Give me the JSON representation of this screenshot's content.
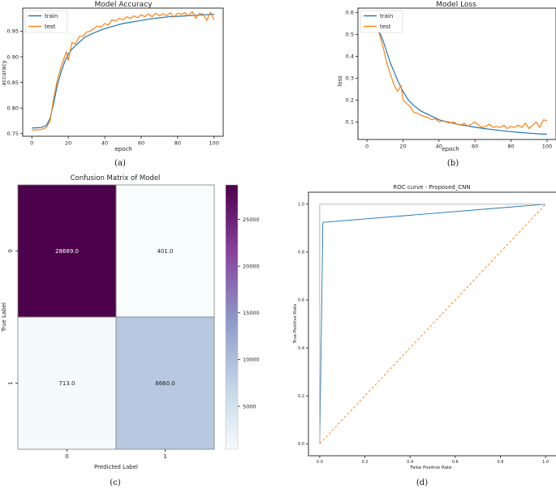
{
  "chart_data": [
    {
      "type": "line",
      "title": "Model Accuracy",
      "xlabel": "epoch",
      "ylabel": "accuracy",
      "caption": "(a)",
      "xlim": [
        -5,
        105
      ],
      "ylim": [
        0.745,
        0.995
      ],
      "xticks": [
        0,
        20,
        40,
        60,
        80,
        100
      ],
      "yticks": [
        0.75,
        0.8,
        0.85,
        0.9,
        0.95
      ],
      "ytick_labels": [
        "0.75",
        "0.80",
        "0.85",
        "0.90",
        "0.95"
      ],
      "legend": "top-left",
      "series": [
        {
          "name": "train",
          "color": "#1f77b4",
          "x": [
            0,
            5,
            8,
            10,
            12,
            14,
            16,
            18,
            20,
            22,
            25,
            28,
            30,
            35,
            40,
            45,
            50,
            55,
            60,
            65,
            70,
            75,
            80,
            85,
            90,
            95,
            100
          ],
          "y": [
            0.761,
            0.762,
            0.766,
            0.78,
            0.81,
            0.845,
            0.87,
            0.89,
            0.905,
            0.915,
            0.925,
            0.935,
            0.94,
            0.948,
            0.955,
            0.96,
            0.965,
            0.968,
            0.971,
            0.974,
            0.976,
            0.978,
            0.979,
            0.98,
            0.981,
            0.982,
            0.983
          ]
        },
        {
          "name": "test",
          "color": "#ff7f0e",
          "x": [
            0,
            5,
            8,
            10,
            12,
            14,
            16,
            18,
            19,
            20,
            22,
            24,
            26,
            28,
            30,
            32,
            34,
            36,
            38,
            40,
            42,
            44,
            46,
            48,
            50,
            52,
            54,
            56,
            58,
            60,
            62,
            64,
            66,
            68,
            70,
            72,
            74,
            76,
            78,
            80,
            82,
            84,
            86,
            88,
            90,
            92,
            94,
            96,
            98,
            100
          ],
          "y": [
            0.757,
            0.758,
            0.762,
            0.775,
            0.82,
            0.855,
            0.88,
            0.9,
            0.91,
            0.893,
            0.928,
            0.925,
            0.94,
            0.94,
            0.948,
            0.95,
            0.955,
            0.96,
            0.958,
            0.965,
            0.962,
            0.972,
            0.97,
            0.975,
            0.972,
            0.978,
            0.975,
            0.98,
            0.976,
            0.982,
            0.978,
            0.984,
            0.978,
            0.985,
            0.98,
            0.984,
            0.98,
            0.986,
            0.977,
            0.985,
            0.983,
            0.986,
            0.98,
            0.988,
            0.975,
            0.985,
            0.983,
            0.971,
            0.987,
            0.972
          ]
        }
      ]
    },
    {
      "type": "line",
      "title": "Model Loss",
      "xlabel": "epoch",
      "ylabel": "loss",
      "caption": "(b)",
      "xlim": [
        -5,
        105
      ],
      "ylim": [
        0.02,
        0.62
      ],
      "xticks": [
        0,
        20,
        40,
        60,
        80,
        100
      ],
      "yticks": [
        0.1,
        0.2,
        0.3,
        0.4,
        0.5,
        0.6
      ],
      "ytick_labels": [
        "0.1",
        "0.2",
        "0.3",
        "0.4",
        "0.5",
        "0.6"
      ],
      "legend": "top-left",
      "series": [
        {
          "name": "train",
          "color": "#1f77b4",
          "x": [
            0,
            3,
            5,
            7,
            9,
            11,
            13,
            15,
            17,
            20,
            23,
            26,
            30,
            35,
            40,
            45,
            50,
            55,
            60,
            65,
            70,
            75,
            80,
            85,
            90,
            95,
            100
          ],
          "y": [
            0.57,
            0.56,
            0.54,
            0.51,
            0.47,
            0.42,
            0.37,
            0.33,
            0.29,
            0.24,
            0.2,
            0.175,
            0.15,
            0.13,
            0.11,
            0.1,
            0.09,
            0.083,
            0.076,
            0.07,
            0.065,
            0.06,
            0.056,
            0.052,
            0.049,
            0.046,
            0.044
          ]
        },
        {
          "name": "test",
          "color": "#ff7f0e",
          "x": [
            0,
            3,
            5,
            7,
            9,
            11,
            13,
            15,
            17,
            19,
            20,
            22,
            24,
            26,
            28,
            30,
            32,
            34,
            36,
            38,
            40,
            42,
            44,
            46,
            48,
            50,
            52,
            54,
            56,
            58,
            60,
            62,
            64,
            66,
            68,
            70,
            72,
            74,
            76,
            78,
            80,
            82,
            84,
            86,
            88,
            90,
            92,
            94,
            96,
            98,
            100
          ],
          "y": [
            0.57,
            0.56,
            0.54,
            0.5,
            0.44,
            0.37,
            0.32,
            0.27,
            0.24,
            0.265,
            0.2,
            0.185,
            0.17,
            0.145,
            0.14,
            0.13,
            0.125,
            0.12,
            0.11,
            0.115,
            0.1,
            0.105,
            0.1,
            0.095,
            0.1,
            0.09,
            0.085,
            0.095,
            0.08,
            0.09,
            0.1,
            0.085,
            0.075,
            0.08,
            0.09,
            0.075,
            0.08,
            0.075,
            0.085,
            0.07,
            0.08,
            0.075,
            0.085,
            0.075,
            0.095,
            0.07,
            0.085,
            0.1,
            0.075,
            0.11,
            0.105
          ]
        }
      ]
    },
    {
      "type": "heatmap",
      "title": "Confusion Matrix of Model",
      "xlabel": "Predicted Label",
      "ylabel": "True Label",
      "caption": "(c)",
      "row_labels": [
        "0",
        "1"
      ],
      "col_labels": [
        "0",
        "1"
      ],
      "values": [
        [
          28689.0,
          401.0
        ],
        [
          713.0,
          8660.0
        ]
      ],
      "cell_text": [
        [
          "28689.0",
          "401.0"
        ],
        [
          "713.0",
          "8660.0"
        ]
      ],
      "colorbar": {
        "ticks": [
          5000,
          10000,
          15000,
          20000,
          25000
        ],
        "labels": [
          "5000",
          "10000",
          "15000",
          "20000",
          "25000"
        ]
      }
    },
    {
      "type": "line",
      "title": "ROC curve - Proposed_CNN",
      "xlabel": "False Positive Rate",
      "ylabel": "True Positive Rate",
      "caption": "(d)",
      "xlim": [
        -0.05,
        1.05
      ],
      "ylim": [
        -0.05,
        1.05
      ],
      "xticks": [
        0.0,
        0.2,
        0.4,
        0.6,
        0.8,
        1.0
      ],
      "xtick_labels": [
        "0.0",
        "0.2",
        "0.4",
        "0.6",
        "0.8",
        "1.0"
      ],
      "yticks": [
        0.0,
        0.2,
        0.4,
        0.6,
        0.8,
        1.0
      ],
      "ytick_labels": [
        "0.0",
        "0.2",
        "0.4",
        "0.6",
        "0.8",
        "1.0"
      ],
      "series": [
        {
          "color": "#1f77b4",
          "x": [
            0,
            0.014,
            1.0
          ],
          "y": [
            0,
            0.924,
            1.0
          ]
        },
        {
          "color": "#ff7f0e",
          "dashed": true,
          "x": [
            0,
            1
          ],
          "y": [
            0,
            1
          ]
        },
        {
          "color": "#b0b0b0",
          "x": [
            0,
            0,
            1
          ],
          "y": [
            0,
            1,
            1
          ]
        }
      ]
    }
  ]
}
